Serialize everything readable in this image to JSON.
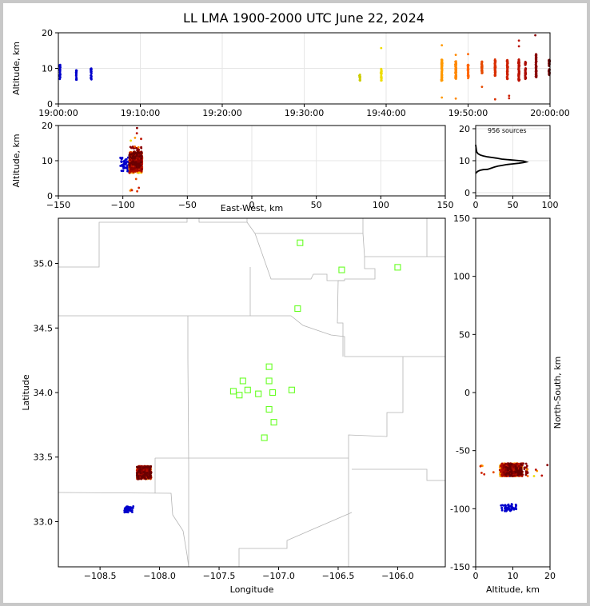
{
  "chart_data": {
    "type": "scatter",
    "title": "LL LMA 1900-2000 UTC June 22, 2024",
    "time_height": {
      "ylabel": "Altitude, km",
      "xticks": [
        "19:00:00",
        "19:10:00",
        "19:20:00",
        "19:30:00",
        "19:40:00",
        "19:50:00",
        "20:00:00"
      ],
      "xlim_min": [
        0,
        60
      ],
      "ylim": [
        0,
        20
      ],
      "yticks": [
        0,
        10,
        20
      ],
      "grid": true
    },
    "ew_height": {
      "xlabel": "East-West, km",
      "ylabel": "Altitude, km",
      "xlim": [
        -150,
        150
      ],
      "xticks": [
        -150,
        -100,
        -50,
        0,
        50,
        100,
        150
      ],
      "ylim": [
        0,
        20
      ],
      "yticks": [
        0,
        10,
        20
      ],
      "grid": true
    },
    "histogram": {
      "annotation": "956 sources",
      "xlim": [
        0,
        100
      ],
      "xticks": [
        0,
        50,
        100
      ],
      "ylim": [
        -1,
        21
      ],
      "yticks": [
        0,
        10,
        20
      ],
      "profile": [
        [
          0,
          6
        ],
        [
          1,
          6.3
        ],
        [
          3,
          6.7
        ],
        [
          6,
          7
        ],
        [
          10,
          7.2
        ],
        [
          16,
          7.3
        ],
        [
          20,
          7.6
        ],
        [
          25,
          8
        ],
        [
          30,
          8.3
        ],
        [
          35,
          8.5
        ],
        [
          42,
          8.8
        ],
        [
          50,
          9
        ],
        [
          58,
          9.2
        ],
        [
          64,
          9.4
        ],
        [
          68,
          9.6
        ],
        [
          64,
          9.9
        ],
        [
          55,
          10.1
        ],
        [
          45,
          10.3
        ],
        [
          35,
          10.5
        ],
        [
          28,
          10.8
        ],
        [
          22,
          11
        ],
        [
          16,
          11.2
        ],
        [
          10,
          11.5
        ],
        [
          6,
          11.8
        ],
        [
          3,
          12.2
        ],
        [
          1.5,
          12.7
        ],
        [
          1,
          13.3
        ],
        [
          0.5,
          14
        ],
        [
          0,
          15
        ]
      ]
    },
    "plan_view": {
      "xlabel": "Longitude",
      "ylabel": "Latitude",
      "xlim": [
        -108.85,
        -105.6
      ],
      "xticks": [
        -108.5,
        -108.0,
        -107.5,
        -107.0,
        -106.5,
        -106.0
      ],
      "ylim": [
        32.65,
        35.35
      ],
      "yticks": [
        33.0,
        33.5,
        34.0,
        34.5,
        35.0
      ],
      "stations": [
        [
          -106.82,
          35.16
        ],
        [
          -106.47,
          34.95
        ],
        [
          -106.0,
          34.97
        ],
        [
          -106.84,
          34.65
        ],
        [
          -107.08,
          34.2
        ],
        [
          -107.3,
          34.09
        ],
        [
          -107.08,
          34.09
        ],
        [
          -107.26,
          34.02
        ],
        [
          -107.38,
          34.01
        ],
        [
          -106.89,
          34.02
        ],
        [
          -107.33,
          33.98
        ],
        [
          -107.17,
          33.99
        ],
        [
          -107.05,
          34.0
        ],
        [
          -107.08,
          33.87
        ],
        [
          -107.04,
          33.77
        ],
        [
          -107.12,
          33.65
        ]
      ],
      "cluster_main": {
        "lon": [
          -108.19,
          -108.07
        ],
        "lat": [
          33.33,
          33.43
        ],
        "count": 360
      },
      "cluster_small": {
        "lon": [
          -108.3,
          -108.22
        ],
        "lat": [
          33.07,
          33.12
        ],
        "count": 60
      }
    },
    "ns_height": {
      "xlabel": "Altitude, km",
      "ylabel": "North-South, km",
      "xlim": [
        0,
        20
      ],
      "xticks": [
        0,
        10,
        20
      ],
      "ylim": [
        -150,
        150
      ],
      "yticks": [
        -150,
        -100,
        -50,
        0,
        50,
        100,
        150
      ]
    },
    "time_bursts": [
      {
        "t": 0.2,
        "zmin": 7,
        "zmax": 11,
        "n": 30,
        "color": "#0000cc"
      },
      {
        "t": 2.2,
        "zmin": 6.8,
        "zmax": 9.5,
        "n": 20,
        "color": "#0000cc"
      },
      {
        "t": 4.0,
        "zmin": 6.8,
        "zmax": 10,
        "n": 28,
        "color": "#0000cc"
      },
      {
        "t": 36.8,
        "zmin": 6.5,
        "zmax": 8.5,
        "n": 18,
        "color": "#cccc00"
      },
      {
        "t": 39.4,
        "zmin": 6.5,
        "zmax": 10,
        "n": 30,
        "color": "#eedd00"
      },
      {
        "t": 46.8,
        "zmin": 6.5,
        "zmax": 12.5,
        "n": 90,
        "color": "#ff9900"
      },
      {
        "t": 48.5,
        "zmin": 7,
        "zmax": 12,
        "n": 80,
        "color": "#ff8800"
      },
      {
        "t": 50.0,
        "zmin": 7.2,
        "zmax": 11,
        "n": 45,
        "color": "#ff6600"
      },
      {
        "t": 51.7,
        "zmin": 8.5,
        "zmax": 12,
        "n": 45,
        "color": "#e64a00"
      },
      {
        "t": 53.3,
        "zmin": 7.5,
        "zmax": 12.5,
        "n": 60,
        "color": "#d93000"
      },
      {
        "t": 54.8,
        "zmin": 7,
        "zmax": 12.5,
        "n": 60,
        "color": "#cc2000"
      },
      {
        "t": 56.2,
        "zmin": 6.5,
        "zmax": 12.5,
        "n": 70,
        "color": "#bb1100"
      },
      {
        "t": 57.0,
        "zmin": 7,
        "zmax": 12,
        "n": 45,
        "color": "#aa0a00"
      },
      {
        "t": 58.3,
        "zmin": 7.5,
        "zmax": 14,
        "n": 70,
        "color": "#8a0000"
      },
      {
        "t": 59.9,
        "zmin": 8,
        "zmax": 12.5,
        "n": 55,
        "color": "#6a0000"
      }
    ],
    "outliers": [
      {
        "t": 46.8,
        "z": 16.5,
        "color": "#ff9900"
      },
      {
        "t": 46.8,
        "z": 1.8,
        "color": "#ff9900"
      },
      {
        "t": 48.5,
        "z": 13.8,
        "color": "#ff8800"
      },
      {
        "t": 48.5,
        "z": 1.5,
        "color": "#ff8800"
      },
      {
        "t": 50.0,
        "z": 14.0,
        "color": "#ff6600"
      },
      {
        "t": 51.7,
        "z": 4.8,
        "color": "#e64a00"
      },
      {
        "t": 53.3,
        "z": 1.3,
        "color": "#d93000"
      },
      {
        "t": 55.0,
        "z": 2.3,
        "color": "#cc2000"
      },
      {
        "t": 55.0,
        "z": 1.6,
        "color": "#cc2000"
      },
      {
        "t": 56.2,
        "z": 17.8,
        "color": "#bb1100"
      },
      {
        "t": 56.2,
        "z": 16.2,
        "color": "#bb1100"
      },
      {
        "t": 58.2,
        "z": 19.3,
        "color": "#8a0000"
      },
      {
        "t": 39.4,
        "z": 15.7,
        "color": "#eedd00"
      }
    ]
  }
}
